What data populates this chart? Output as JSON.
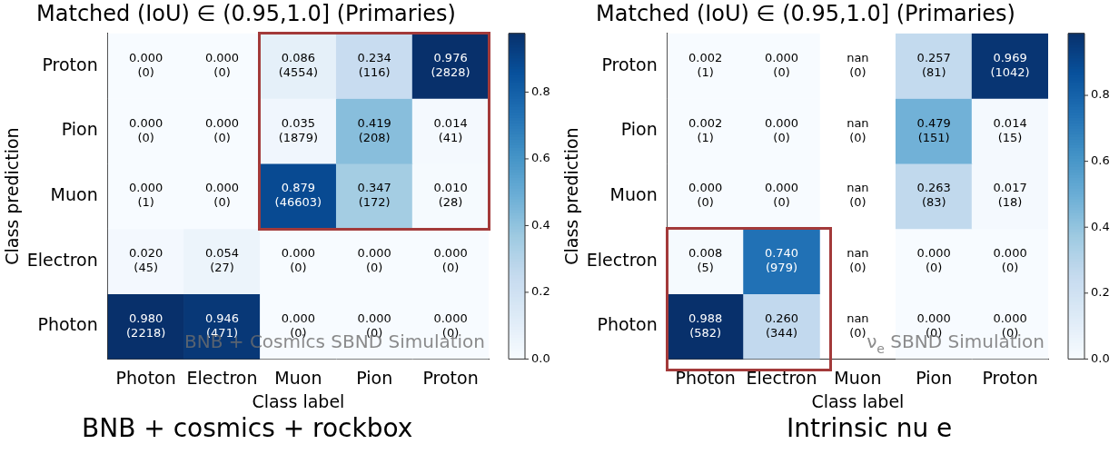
{
  "chart_data": [
    {
      "type": "heatmap",
      "title": "Matched (IoU) ∈ (0.95,1.0] (Primaries)",
      "xlabel": "Class label",
      "ylabel": "Class prediction",
      "categories": [
        "Photon",
        "Electron",
        "Muon",
        "Pion",
        "Proton"
      ],
      "y_categories": [
        "Proton",
        "Pion",
        "Muon",
        "Electron",
        "Photon"
      ],
      "cells": [
        [
          0.0,
          0.0,
          0.086,
          0.234,
          0.976
        ],
        [
          0.0,
          0.0,
          0.035,
          0.419,
          0.014
        ],
        [
          0.0,
          0.0,
          0.879,
          0.347,
          0.01
        ],
        [
          0.02,
          0.054,
          0.0,
          0.0,
          0.0
        ],
        [
          0.98,
          0.946,
          0.0,
          0.0,
          0.0
        ]
      ],
      "cell_labels": [
        [
          "0.000\n(0)",
          "0.000\n(0)",
          "0.086\n(4554)",
          "0.234\n(116)",
          "0.976\n(2828)"
        ],
        [
          "0.000\n(0)",
          "0.000\n(0)",
          "0.035\n(1879)",
          "0.419\n(208)",
          "0.014\n(41)"
        ],
        [
          "0.000\n(1)",
          "0.000\n(0)",
          "0.879\n(46603)",
          "0.347\n(172)",
          "0.010\n(28)"
        ],
        [
          "0.020\n(45)",
          "0.054\n(27)",
          "0.000\n(0)",
          "0.000\n(0)",
          "0.000\n(0)"
        ],
        [
          "0.980\n(2218)",
          "0.946\n(471)",
          "0.000\n(0)",
          "0.000\n(0)",
          "0.000\n(0)"
        ]
      ],
      "clim": [
        0,
        0.976
      ],
      "cticks": [
        {
          "value": 0,
          "label": "0.0"
        },
        0.2,
        0.4,
        0.6,
        0.8
      ],
      "annotations": [
        "BNB + Cosmics SBND Simulation",
        "BNB + cosmics + rockbox"
      ]
    },
    {
      "type": "heatmap",
      "title": "Matched (IoU) ∈ (0.95,1.0] (Primaries)",
      "xlabel": "Class label",
      "ylabel": "Class prediction",
      "categories": [
        "Photon",
        "Electron",
        "Muon",
        "Pion",
        "Proton"
      ],
      "y_categories": [
        "Proton",
        "Pion",
        "Muon",
        "Electron",
        "Photon"
      ],
      "cells": [
        [
          0.002,
          0.0,
          null,
          0.257,
          0.969
        ],
        [
          0.002,
          0.0,
          null,
          0.479,
          0.014
        ],
        [
          0.0,
          0.0,
          null,
          0.263,
          0.017
        ],
        [
          0.008,
          0.74,
          null,
          0.0,
          0.0
        ],
        [
          0.988,
          0.26,
          null,
          0.0,
          0.0
        ]
      ],
      "cell_labels": [
        [
          "0.002\n(1)",
          "0.000\n(0)",
          "nan\n(0)",
          "0.257\n(81)",
          "0.969\n(1042)"
        ],
        [
          "0.002\n(1)",
          "0.000\n(0)",
          "nan\n(0)",
          "0.479\n(151)",
          "0.014\n(15)"
        ],
        [
          "0.000\n(0)",
          "0.000\n(0)",
          "nan\n(0)",
          "0.263\n(83)",
          "0.017\n(18)"
        ],
        [
          "0.008\n(5)",
          "0.740\n(979)",
          "nan\n(0)",
          "0.000\n(0)",
          "0.000\n(0)"
        ],
        [
          "0.988\n(582)",
          "0.260\n(344)",
          "nan\n(0)",
          "0.000\n(0)",
          "0.000\n(0)"
        ]
      ],
      "clim": [
        0,
        0.988
      ],
      "cticks": [
        {
          "value": 0,
          "label": "0.0"
        },
        0.2,
        0.4,
        0.6,
        0.8
      ],
      "annotations": [
        "ν$_{e}$ SBND Simulation",
        "Intrinsic nu e"
      ]
    }
  ]
}
